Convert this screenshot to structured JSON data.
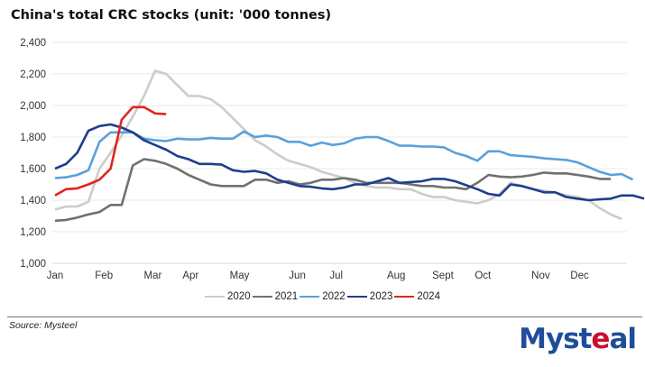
{
  "chart_data": {
    "type": "line",
    "title": "China's total CRC stocks (unit: '000 tonnes)",
    "xlabel": "",
    "ylabel": "",
    "ylim": [
      1000,
      2400
    ],
    "yticks": [
      1000,
      1200,
      1400,
      1600,
      1800,
      2000,
      2200,
      2400
    ],
    "ytick_labels": [
      "1,000",
      "1,200",
      "1,400",
      "1,600",
      "1,800",
      "2,000",
      "2,200",
      "2,400"
    ],
    "xlim_weeks": [
      0,
      51
    ],
    "xticks": [
      {
        "label": "Jan",
        "week": 0
      },
      {
        "label": "Feb",
        "week": 4.4
      },
      {
        "label": "Mar",
        "week": 8.8
      },
      {
        "label": "Apr",
        "week": 12.2
      },
      {
        "label": "May",
        "week": 16.6
      },
      {
        "label": "Jun",
        "week": 21.8
      },
      {
        "label": "Jul",
        "week": 25.3
      },
      {
        "label": "Aug",
        "week": 30.7
      },
      {
        "label": "Sept",
        "week": 34.9
      },
      {
        "label": "Oct",
        "week": 38.5
      },
      {
        "label": "Nov",
        "week": 43.7
      },
      {
        "label": "Dec",
        "week": 47.2
      }
    ],
    "grid": true,
    "legend_position": "bottom",
    "series": [
      {
        "name": "2020",
        "color": "#cccccc",
        "values": [
          1340,
          1360,
          1360,
          1390,
          1600,
          1700,
          1810,
          1930,
          2060,
          2220,
          2200,
          2130,
          2060,
          2060,
          2040,
          1990,
          1920,
          1850,
          1780,
          1740,
          1690,
          1650,
          1630,
          1610,
          1580,
          1560,
          1540,
          1510,
          1490,
          1480,
          1480,
          1470,
          1470,
          1440,
          1420,
          1420,
          1400,
          1390,
          1380,
          1400,
          1440,
          1510,
          1490,
          1470,
          1460,
          1450,
          1430,
          1420,
          1400,
          1350,
          1310,
          1280
        ]
      },
      {
        "name": "2021",
        "color": "#707070",
        "values": [
          1270,
          1275,
          1290,
          1310,
          1325,
          1370,
          1370,
          1620,
          1660,
          1650,
          1630,
          1600,
          1560,
          1530,
          1500,
          1490,
          1490,
          1490,
          1530,
          1530,
          1510,
          1520,
          1500,
          1510,
          1530,
          1530,
          1540,
          1530,
          1510,
          1510,
          1510,
          1510,
          1500,
          1490,
          1490,
          1480,
          1480,
          1470,
          1510,
          1560,
          1550,
          1545,
          1550,
          1560,
          1575,
          1570,
          1570,
          1560,
          1550,
          1535,
          1535
        ]
      },
      {
        "name": "2022",
        "color": "#5aa0dc",
        "values": [
          1540,
          1545,
          1560,
          1590,
          1770,
          1830,
          1830,
          1830,
          1790,
          1780,
          1775,
          1790,
          1785,
          1785,
          1795,
          1790,
          1790,
          1835,
          1800,
          1810,
          1800,
          1770,
          1770,
          1745,
          1765,
          1750,
          1760,
          1790,
          1800,
          1800,
          1775,
          1745,
          1745,
          1740,
          1740,
          1735,
          1700,
          1680,
          1650,
          1710,
          1710,
          1685,
          1680,
          1675,
          1665,
          1660,
          1655,
          1640,
          1610,
          1580,
          1560,
          1565,
          1530
        ]
      },
      {
        "name": "2023",
        "color": "#1f3d8c",
        "values": [
          1600,
          1630,
          1700,
          1840,
          1870,
          1880,
          1860,
          1830,
          1780,
          1750,
          1720,
          1680,
          1660,
          1630,
          1630,
          1625,
          1590,
          1580,
          1585,
          1570,
          1530,
          1510,
          1490,
          1485,
          1475,
          1470,
          1480,
          1500,
          1500,
          1520,
          1540,
          1510,
          1515,
          1520,
          1535,
          1535,
          1520,
          1495,
          1470,
          1440,
          1430,
          1500,
          1490,
          1470,
          1450,
          1450,
          1420,
          1410,
          1400,
          1405,
          1410,
          1430,
          1430,
          1410
        ]
      },
      {
        "name": "2024",
        "color": "#e0261f",
        "values": [
          1430,
          1470,
          1475,
          1500,
          1530,
          1600,
          1910,
          1990,
          1990,
          1950,
          1945
        ]
      }
    ]
  },
  "footer": {
    "source": "Source: Mysteel",
    "logo_text": "Mysteel"
  }
}
